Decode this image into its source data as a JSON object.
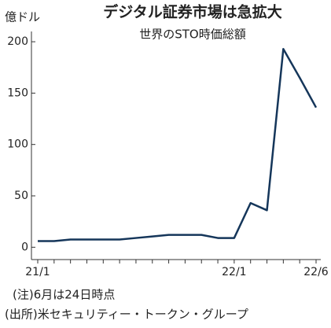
{
  "chart_data": {
    "type": "line",
    "title": "デジタル証券市場は急拡大",
    "subtitle": "世界のSTO時価総額",
    "y_label": "億ドル",
    "notes": [
      "(注)6月は24日時点",
      "(出所)米セキュリティー・トークン・グループ"
    ],
    "categories": [
      "21/1",
      null,
      null,
      null,
      null,
      null,
      null,
      null,
      null,
      null,
      null,
      null,
      "22/1",
      null,
      null,
      null,
      null,
      "22/6"
    ],
    "series": [
      {
        "name": "STO時価総額",
        "color": "#15365a",
        "values": [
          6,
          6,
          7.5,
          7.5,
          7.5,
          7.5,
          9,
          10.5,
          12,
          12,
          12,
          9,
          9,
          43,
          36,
          193,
          165,
          136
        ]
      }
    ],
    "ylim": [
      -12,
      210
    ],
    "yticks": [
      0,
      50,
      100,
      150,
      200
    ],
    "grid": false
  }
}
